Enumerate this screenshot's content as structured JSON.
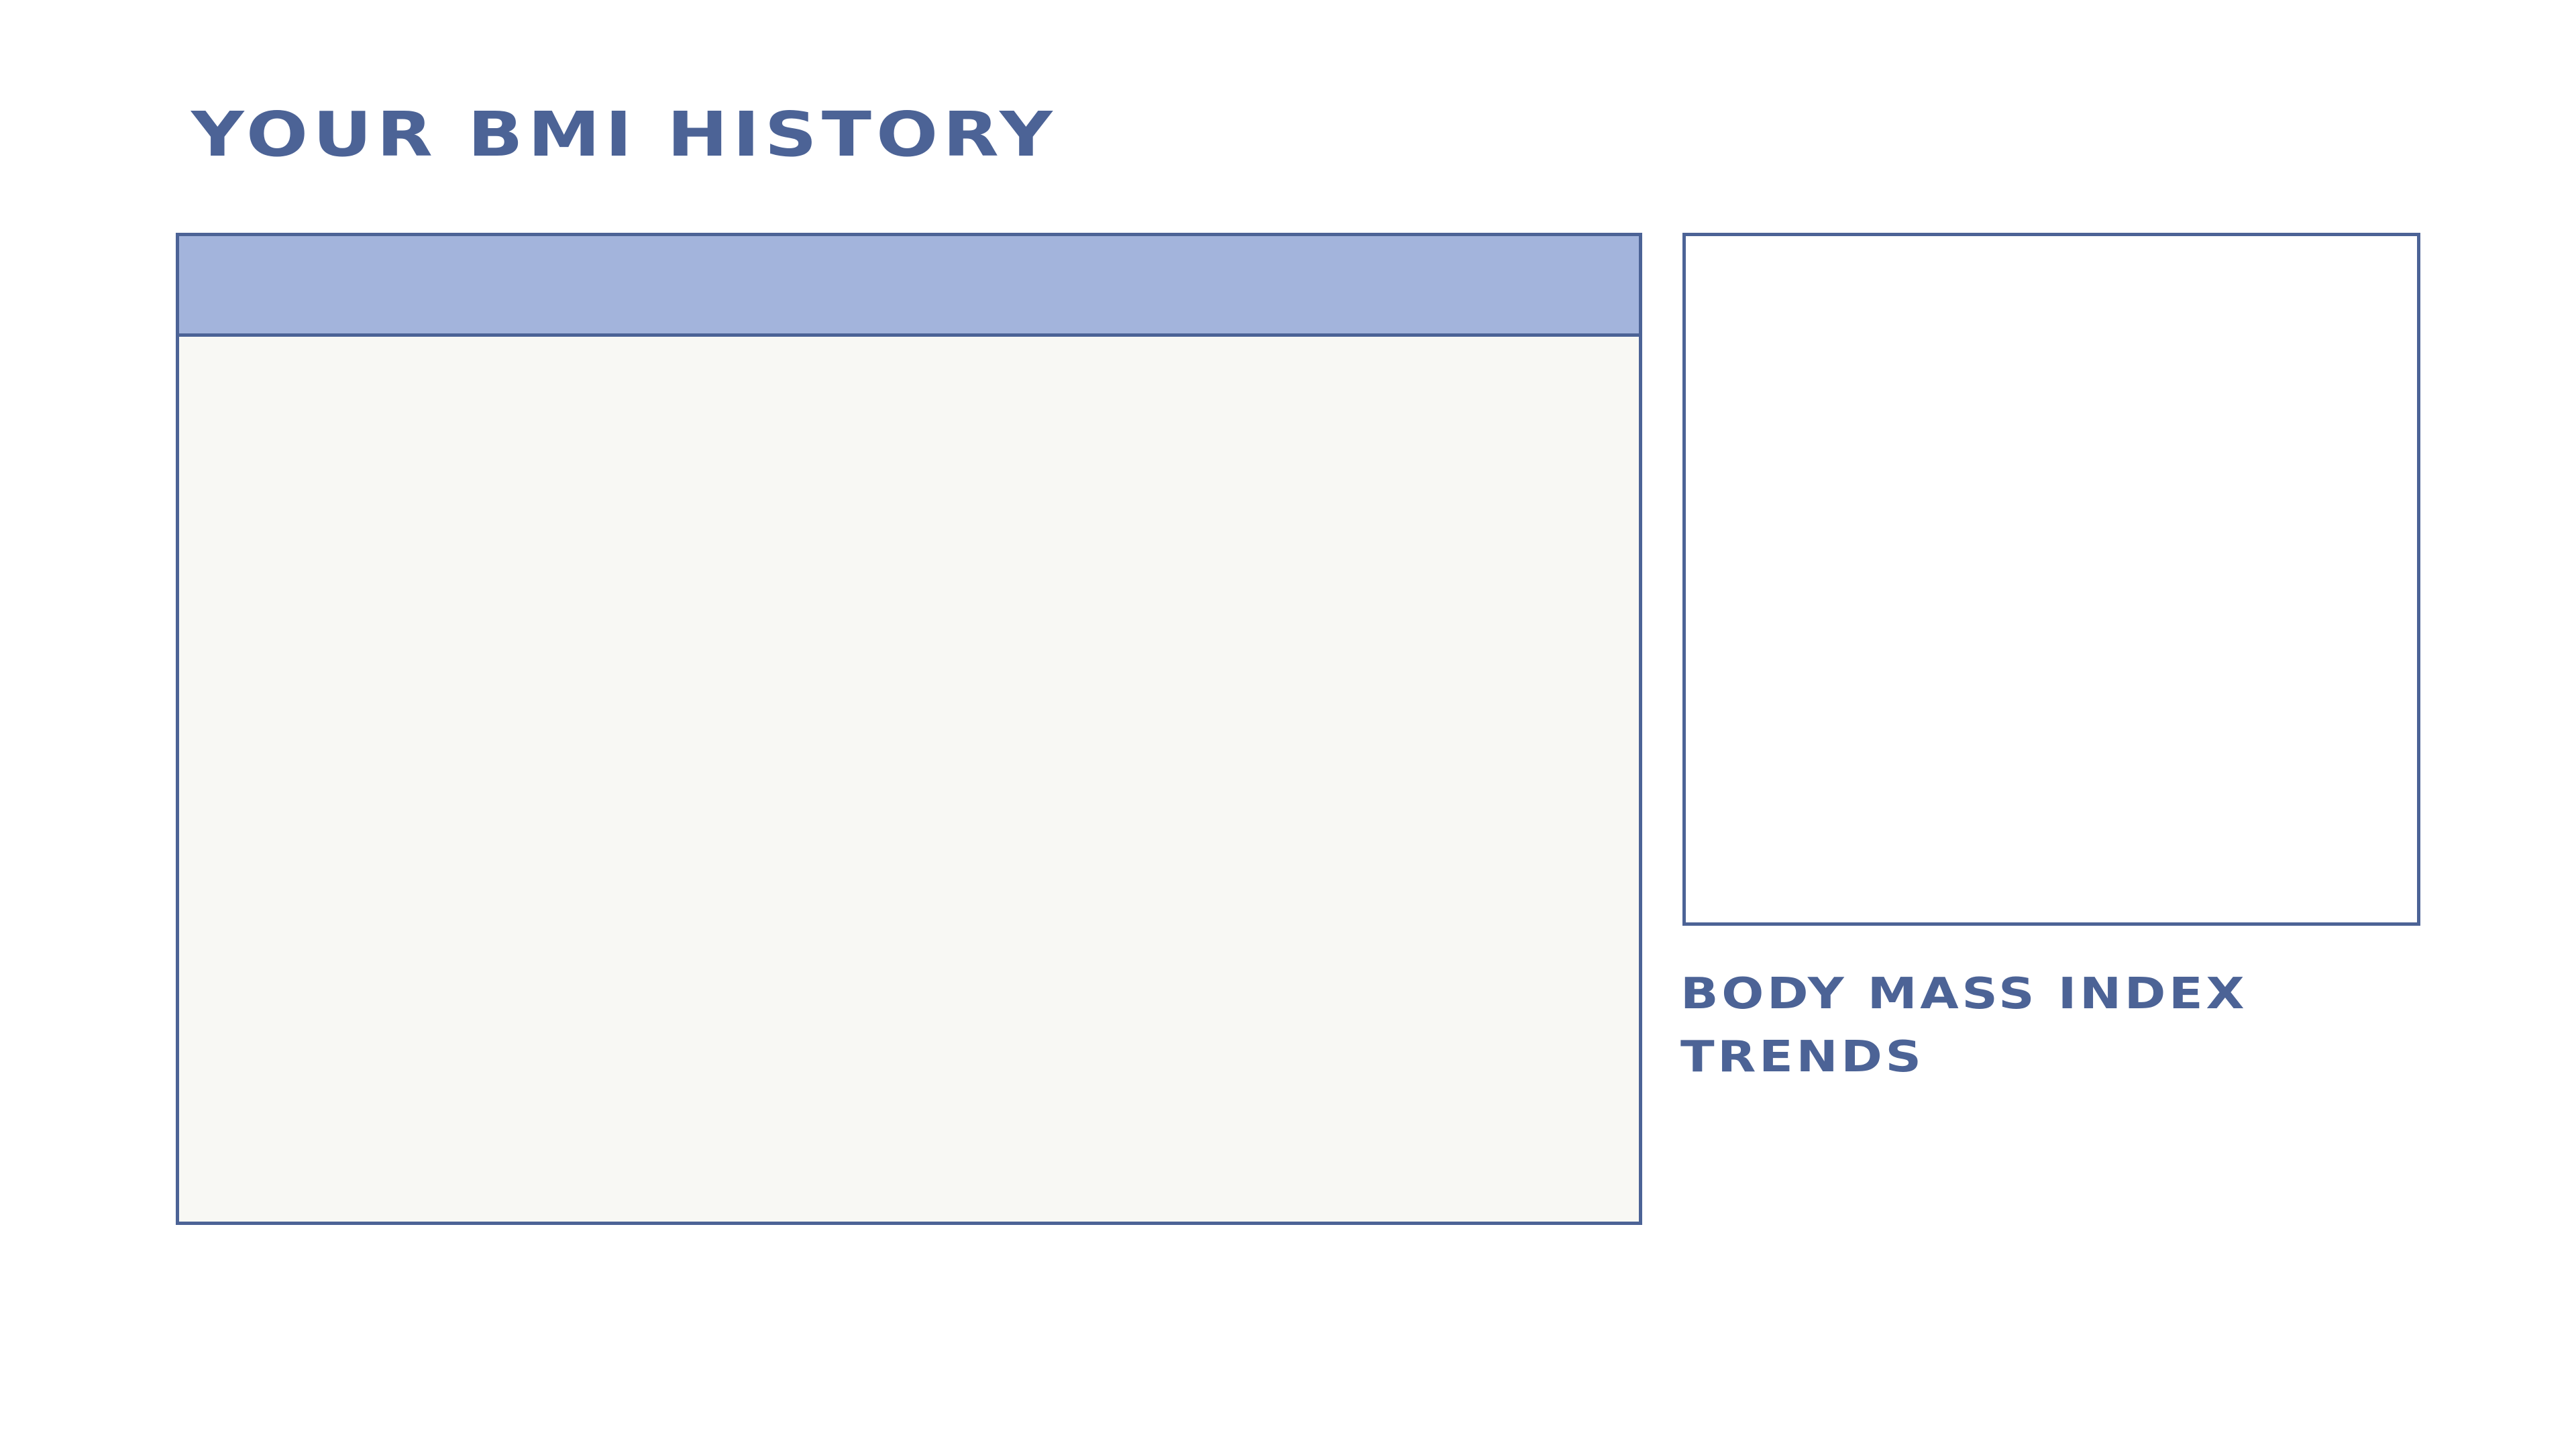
{
  "page": {
    "title": "YOUR BMI HISTORY"
  },
  "side_panel": {
    "caption_line1": "BODY MASS INDEX",
    "caption_line2": "TRENDS"
  },
  "colors": {
    "accent": "#4c6396",
    "header_fill": "#a3b4dc",
    "panel_fill": "#f8f8f4",
    "background": "#ffffff"
  }
}
